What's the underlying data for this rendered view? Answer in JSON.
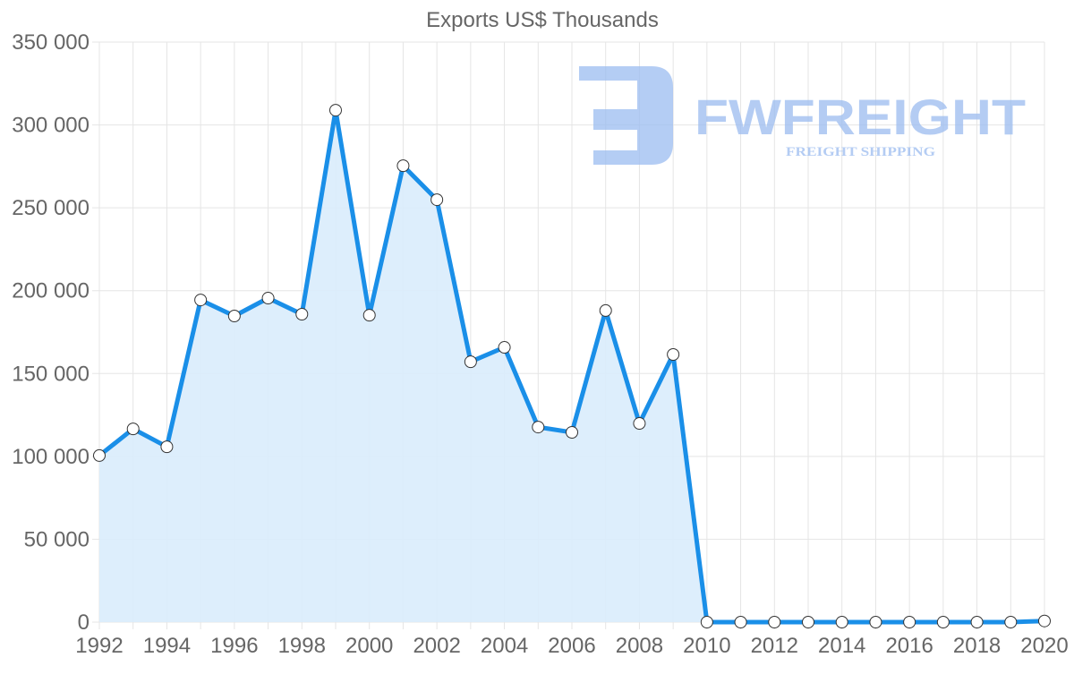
{
  "chart_data": {
    "type": "area",
    "title": "Exports US$ Thousands",
    "xlabel": "",
    "ylabel": "",
    "x": [
      1992,
      1993,
      1994,
      1995,
      1996,
      1997,
      1998,
      1999,
      2000,
      2001,
      2002,
      2003,
      2004,
      2005,
      2006,
      2007,
      2008,
      2009,
      2010,
      2011,
      2012,
      2013,
      2014,
      2015,
      2016,
      2017,
      2018,
      2019,
      2020
    ],
    "series": [
      {
        "name": "Exports US$ Thousands",
        "values": [
          100500,
          116600,
          105800,
          194400,
          184700,
          195500,
          185800,
          308900,
          185200,
          275400,
          254900,
          157100,
          165800,
          117700,
          114500,
          188000,
          119900,
          161500,
          0,
          0,
          0,
          0,
          0,
          0,
          0,
          0,
          0,
          0,
          700
        ]
      }
    ],
    "ylim": [
      0,
      350000
    ],
    "y_ticks": [
      "0",
      "50 000",
      "100 000",
      "150 000",
      "200 000",
      "250 000",
      "300 000",
      "350 000"
    ],
    "x_ticks": [
      "1992",
      "1994",
      "1996",
      "1998",
      "2000",
      "2002",
      "2004",
      "2006",
      "2008",
      "2010",
      "2012",
      "2014",
      "2016",
      "2018",
      "2020"
    ],
    "grid": true,
    "legend": "none",
    "colors": {
      "line": "#1a8fe8",
      "fill": "#d9ecfc",
      "point_fill": "#ffffff",
      "point_stroke": "#333333"
    }
  },
  "watermark": {
    "brand": "FWFREIGHT",
    "tagline": "FREIGHT SHIPPING",
    "color": "#9bbcf0"
  }
}
